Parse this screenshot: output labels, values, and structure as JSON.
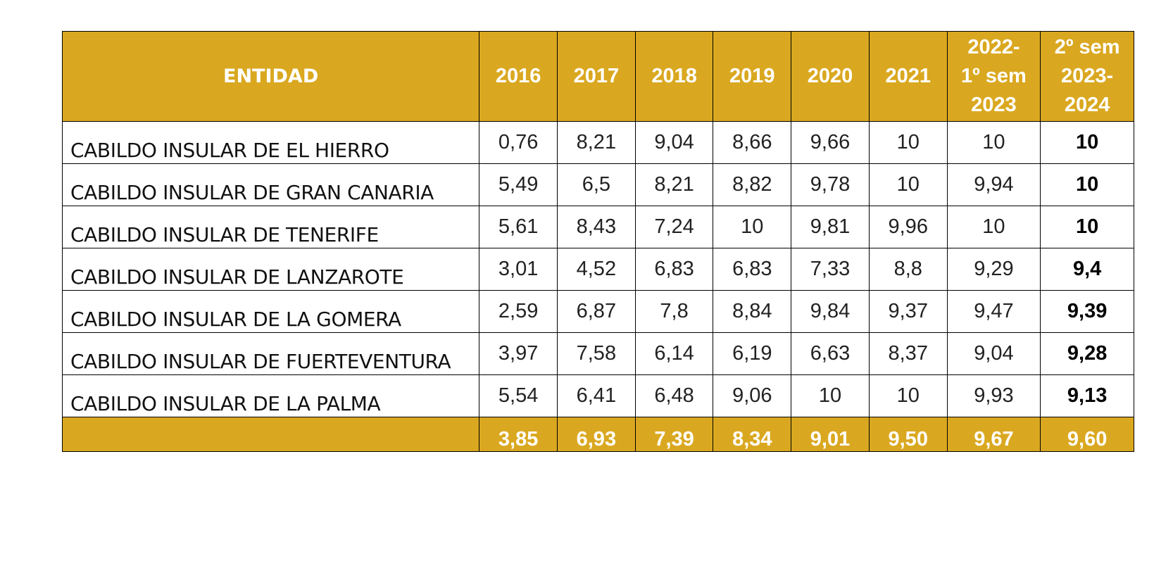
{
  "table": {
    "header": {
      "entity": "ENTIDAD",
      "years": [
        [
          "2016"
        ],
        [
          "2017"
        ],
        [
          "2018"
        ],
        [
          "2019"
        ],
        [
          "2020"
        ],
        [
          "2021"
        ],
        [
          "2022-",
          "1º sem",
          "2023"
        ],
        [
          "2º sem",
          "2023-",
          "2024"
        ]
      ]
    },
    "rows": [
      {
        "entity": "CABILDO INSULAR DE EL HIERRO",
        "values": [
          "0,76",
          "8,21",
          "9,04",
          "8,66",
          "9,66",
          "10",
          "10",
          "10"
        ]
      },
      {
        "entity": "CABILDO INSULAR DE GRAN CANARIA",
        "values": [
          "5,49",
          "6,5",
          "8,21",
          "8,82",
          "9,78",
          "10",
          "9,94",
          "10"
        ]
      },
      {
        "entity": "CABILDO INSULAR DE TENERIFE",
        "values": [
          "5,61",
          "8,43",
          "7,24",
          "10",
          "9,81",
          "9,96",
          "10",
          "10"
        ]
      },
      {
        "entity": "CABILDO INSULAR DE LANZAROTE",
        "values": [
          "3,01",
          "4,52",
          "6,83",
          "6,83",
          "7,33",
          "8,8",
          "9,29",
          "9,4"
        ]
      },
      {
        "entity": "CABILDO INSULAR DE LA GOMERA",
        "values": [
          "2,59",
          "6,87",
          "7,8",
          "8,84",
          "9,84",
          "9,37",
          "9,47",
          "9,39"
        ]
      },
      {
        "entity": "CABILDO INSULAR DE FUERTEVENTURA",
        "values": [
          "3,97",
          "7,58",
          "6,14",
          "6,19",
          "6,63",
          "8,37",
          "9,04",
          "9,28"
        ]
      },
      {
        "entity": "CABILDO INSULAR DE LA PALMA",
        "values": [
          "5,54",
          "6,41",
          "6,48",
          "9,06",
          "10",
          "10",
          "9,93",
          "9,13"
        ]
      }
    ],
    "footer": {
      "entity": "",
      "values": [
        "3,85",
        "6,93",
        "7,39",
        "8,34",
        "9,01",
        "9,50",
        "9,67",
        "9,60"
      ]
    }
  },
  "colors": {
    "header_bg": "#DAA820",
    "header_text": "#FFFFFF",
    "border": "#000000"
  }
}
